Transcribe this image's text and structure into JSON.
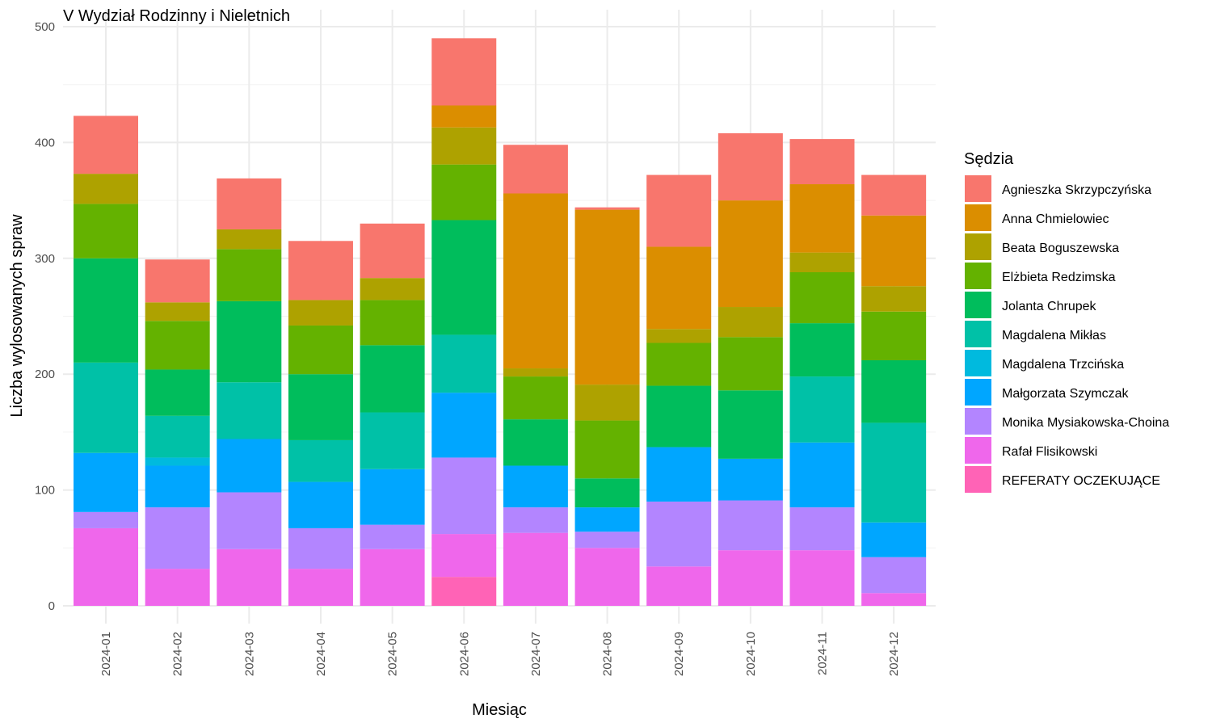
{
  "chart_data": {
    "type": "bar",
    "stacked": true,
    "title": "V Wydział Rodzinny i Nieletnich",
    "xlabel": "Miesiąc",
    "ylabel": "Liczba wylosowanych spraw",
    "ylim": [
      0,
      500
    ],
    "yticks": [
      0,
      100,
      200,
      300,
      400,
      500
    ],
    "grid": true,
    "legend_position": "right",
    "legend_title": "Sędzia",
    "categories": [
      "2024-01",
      "2024-02",
      "2024-03",
      "2024-04",
      "2024-05",
      "2024-06",
      "2024-07",
      "2024-08",
      "2024-09",
      "2024-10",
      "2024-11",
      "2024-12"
    ],
    "series": [
      {
        "name": "Agnieszka Skrzypczyńska",
        "color": "#F8766D",
        "values": [
          50,
          37,
          44,
          51,
          47,
          58,
          42,
          2,
          62,
          58,
          39,
          35
        ]
      },
      {
        "name": "Anna Chmielowiec",
        "color": "#DB8E00",
        "values": [
          0,
          0,
          0,
          0,
          0,
          19,
          151,
          151,
          71,
          92,
          59,
          61
        ]
      },
      {
        "name": "Beata Boguszewska",
        "color": "#AEA200",
        "values": [
          26,
          16,
          17,
          22,
          19,
          32,
          7,
          31,
          12,
          26,
          17,
          22
        ]
      },
      {
        "name": "Elżbieta Redzimska",
        "color": "#64B200",
        "values": [
          47,
          42,
          45,
          42,
          39,
          48,
          37,
          50,
          37,
          46,
          44,
          42
        ]
      },
      {
        "name": "Jolanta Chrupek",
        "color": "#00BD5C",
        "values": [
          90,
          40,
          70,
          57,
          58,
          99,
          40,
          25,
          53,
          59,
          46,
          54
        ]
      },
      {
        "name": "Magdalena Mikłas",
        "color": "#00C1A7",
        "values": [
          78,
          36,
          49,
          36,
          49,
          50,
          0,
          0,
          0,
          0,
          57,
          86
        ]
      },
      {
        "name": "Magdalena Trzcińska",
        "color": "#00BADE",
        "values": [
          0,
          7,
          0,
          0,
          0,
          0,
          0,
          0,
          0,
          0,
          0,
          0
        ]
      },
      {
        "name": "Małgorzata Szymczak",
        "color": "#00A6FF",
        "values": [
          51,
          36,
          46,
          40,
          48,
          56,
          36,
          21,
          47,
          36,
          56,
          30
        ]
      },
      {
        "name": "Monika Mysiakowska-Choina",
        "color": "#B385FF",
        "values": [
          14,
          53,
          49,
          35,
          21,
          66,
          22,
          14,
          56,
          43,
          37,
          31
        ]
      },
      {
        "name": "Rafał Flisikowski",
        "color": "#EF67EB",
        "values": [
          67,
          32,
          49,
          32,
          49,
          37,
          63,
          50,
          34,
          48,
          48,
          11
        ]
      },
      {
        "name": "REFERATY OCZEKUJĄCE",
        "color": "#FF63B6",
        "values": [
          0,
          0,
          0,
          0,
          0,
          25,
          0,
          0,
          0,
          0,
          0,
          0
        ]
      }
    ]
  }
}
